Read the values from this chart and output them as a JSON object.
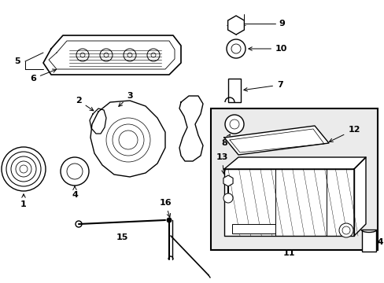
{
  "bg_color": "#ffffff",
  "line_color": "#000000",
  "box_bg": "#ebebeb"
}
